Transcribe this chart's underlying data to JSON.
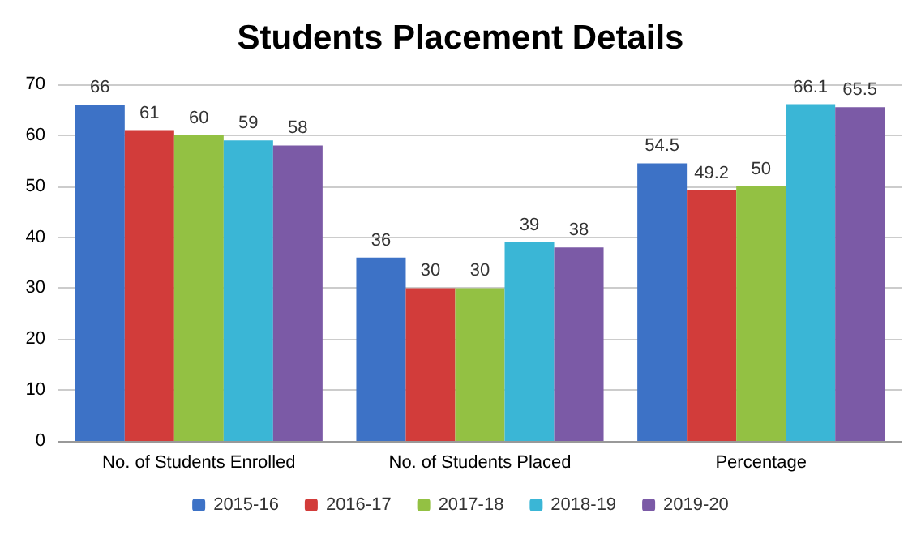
{
  "chart_data": {
    "type": "bar",
    "title": "Students Placement Details",
    "categories": [
      "No. of Students Enrolled",
      "No. of Students Placed",
      "Percentage"
    ],
    "series": [
      {
        "name": "2015-16",
        "color": "#3d72c6",
        "values": [
          66,
          36,
          54.5
        ]
      },
      {
        "name": "2016-17",
        "color": "#d23c3a",
        "values": [
          61,
          30,
          49.2
        ]
      },
      {
        "name": "2017-18",
        "color": "#93c143",
        "values": [
          60,
          30,
          50
        ]
      },
      {
        "name": "2018-19",
        "color": "#3ab6d6",
        "values": [
          59,
          39,
          66.1
        ]
      },
      {
        "name": "2019-20",
        "color": "#7b5aa6",
        "values": [
          58,
          38,
          65.5
        ]
      }
    ],
    "ylim": [
      0,
      70
    ],
    "yticks": [
      0,
      10,
      20,
      30,
      40,
      50,
      60,
      70
    ],
    "grid": "y",
    "legend": "bottom",
    "data_labels": true
  }
}
